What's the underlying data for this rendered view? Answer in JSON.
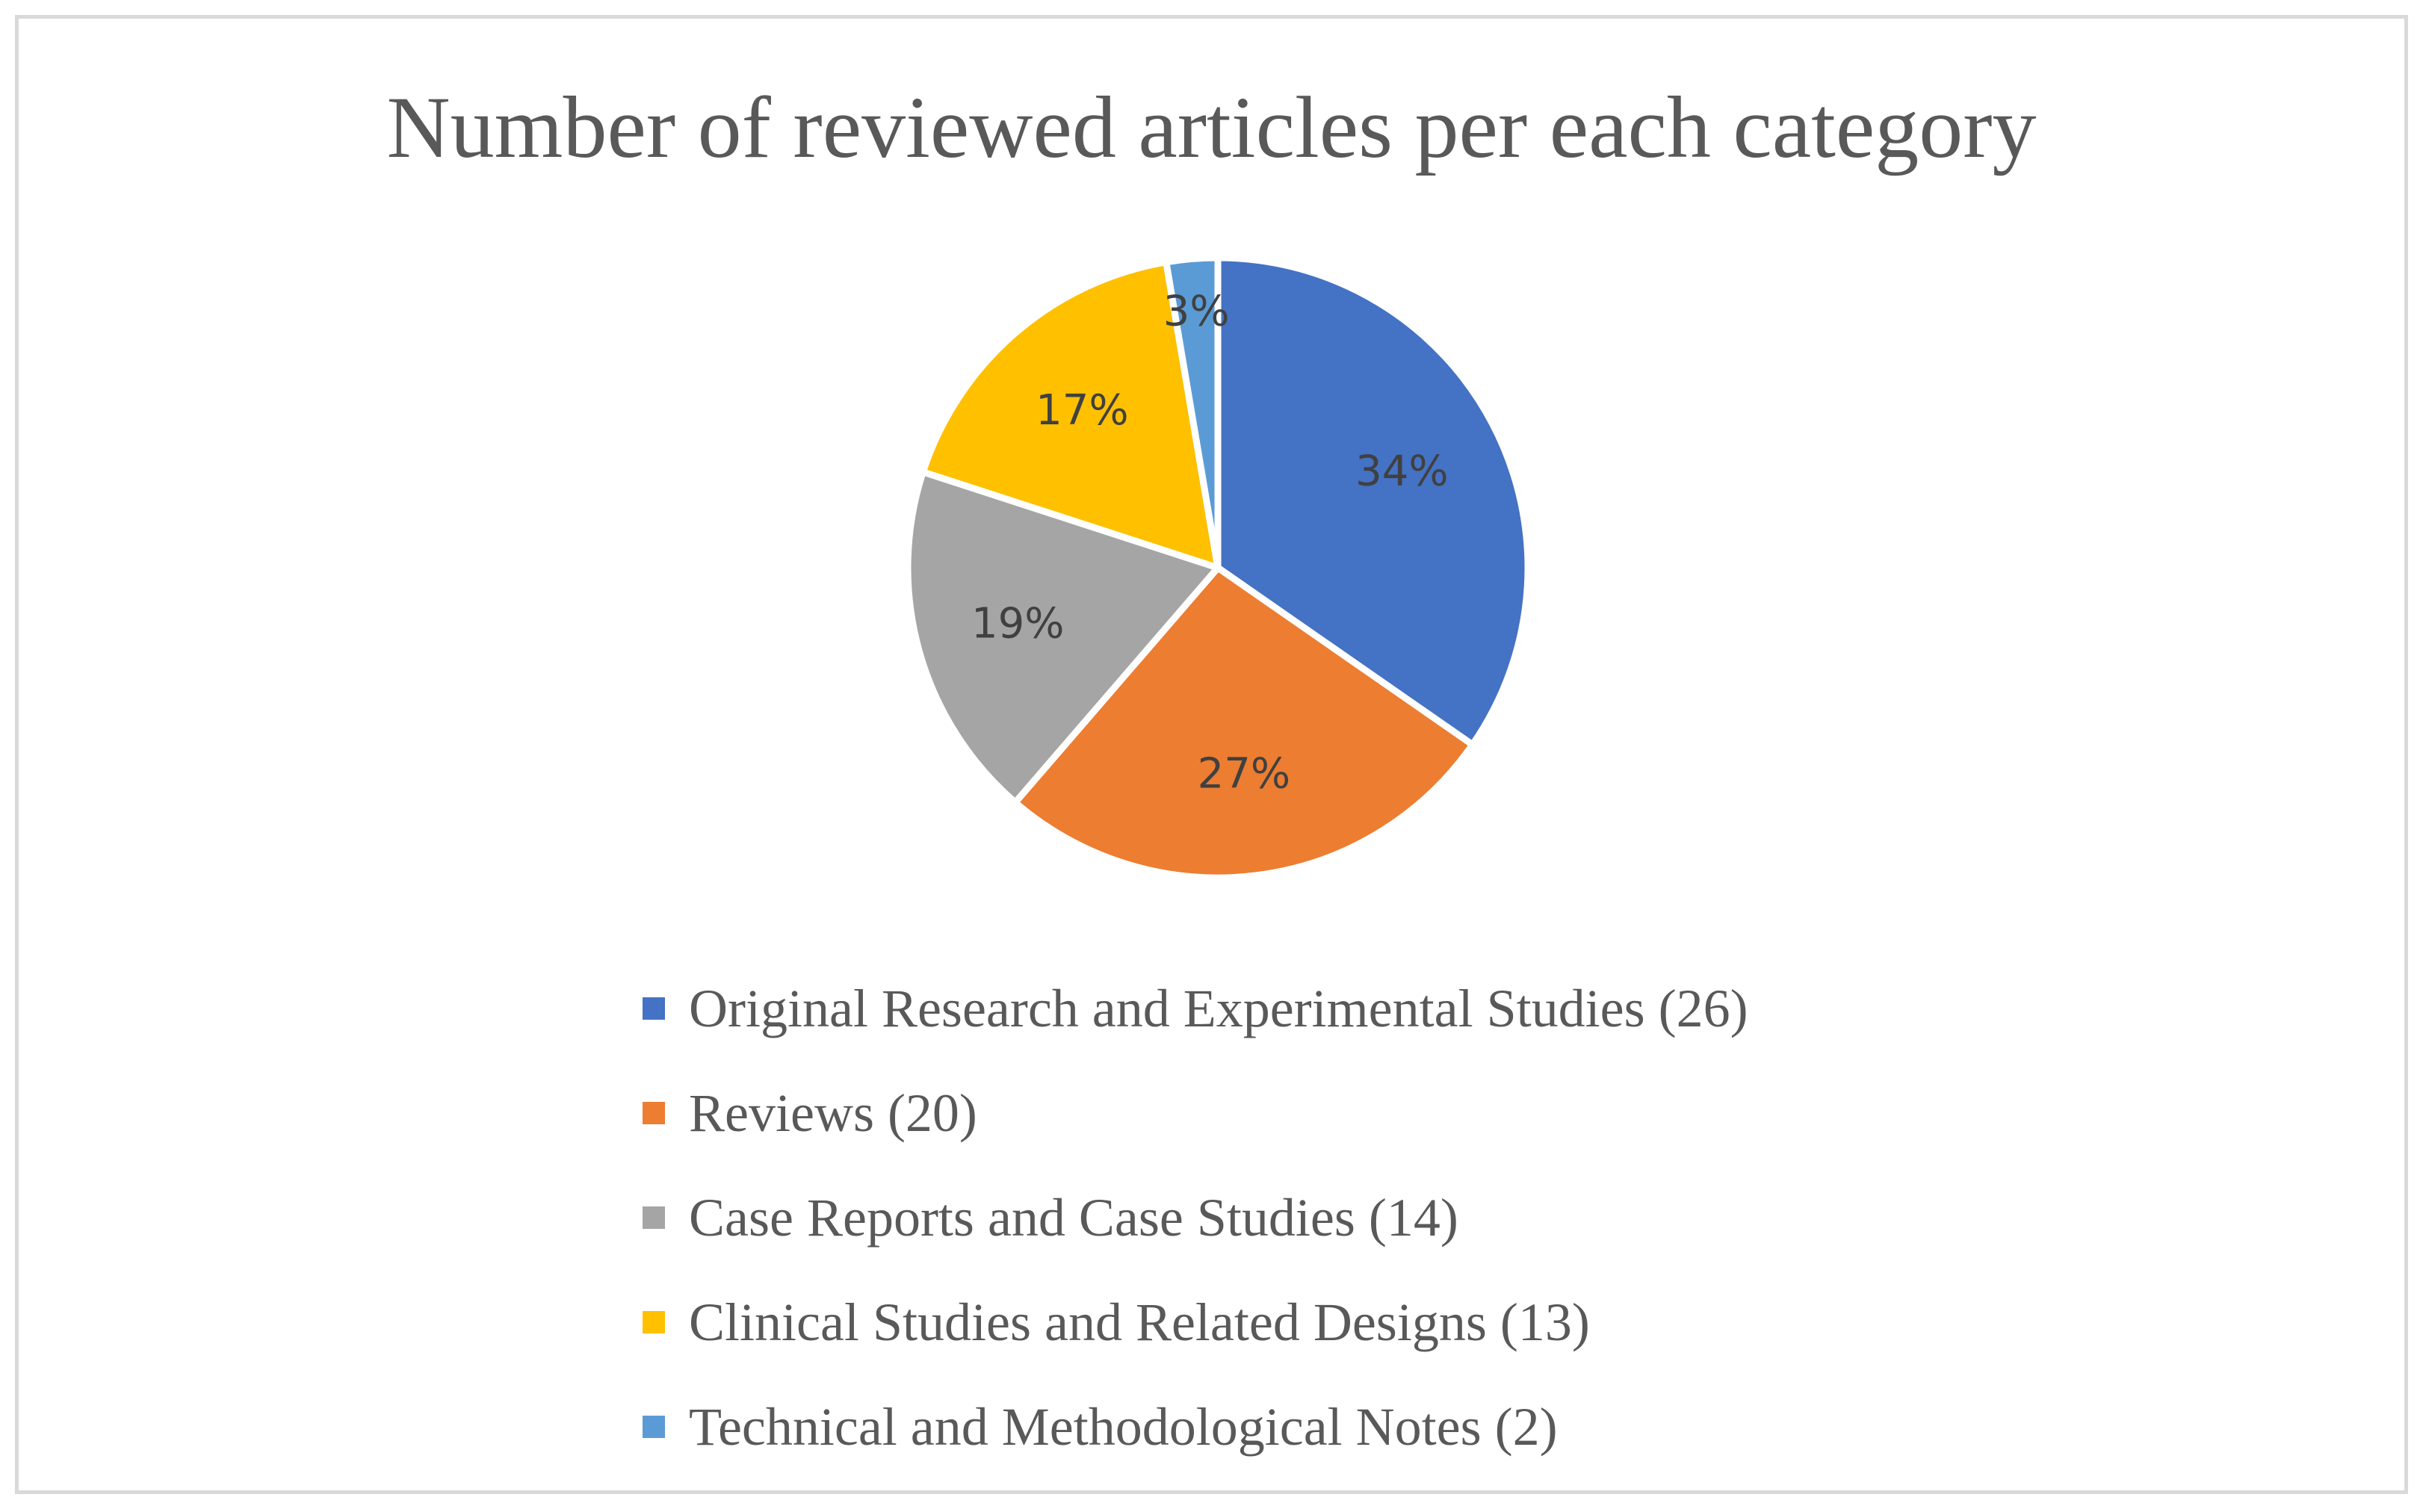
{
  "chart_data": {
    "type": "pie",
    "title": "Number of reviewed articles per each category",
    "legend_position": "bottom",
    "categories": [
      "Original Research and Experimental Studies (26)",
      "Reviews (20)",
      "Case Reports and Case Studies (14)",
      "Clinical Studies and Related Designs (13)",
      "Technical and Methodological Notes (2)"
    ],
    "values": [
      26,
      20,
      14,
      13,
      2
    ],
    "data_labels": [
      "34%",
      "27%",
      "19%",
      "17%",
      "3%"
    ],
    "colors": [
      "#4472c4",
      "#ed7d31",
      "#a5a5a5",
      "#ffc000",
      "#5b9bd5"
    ]
  }
}
